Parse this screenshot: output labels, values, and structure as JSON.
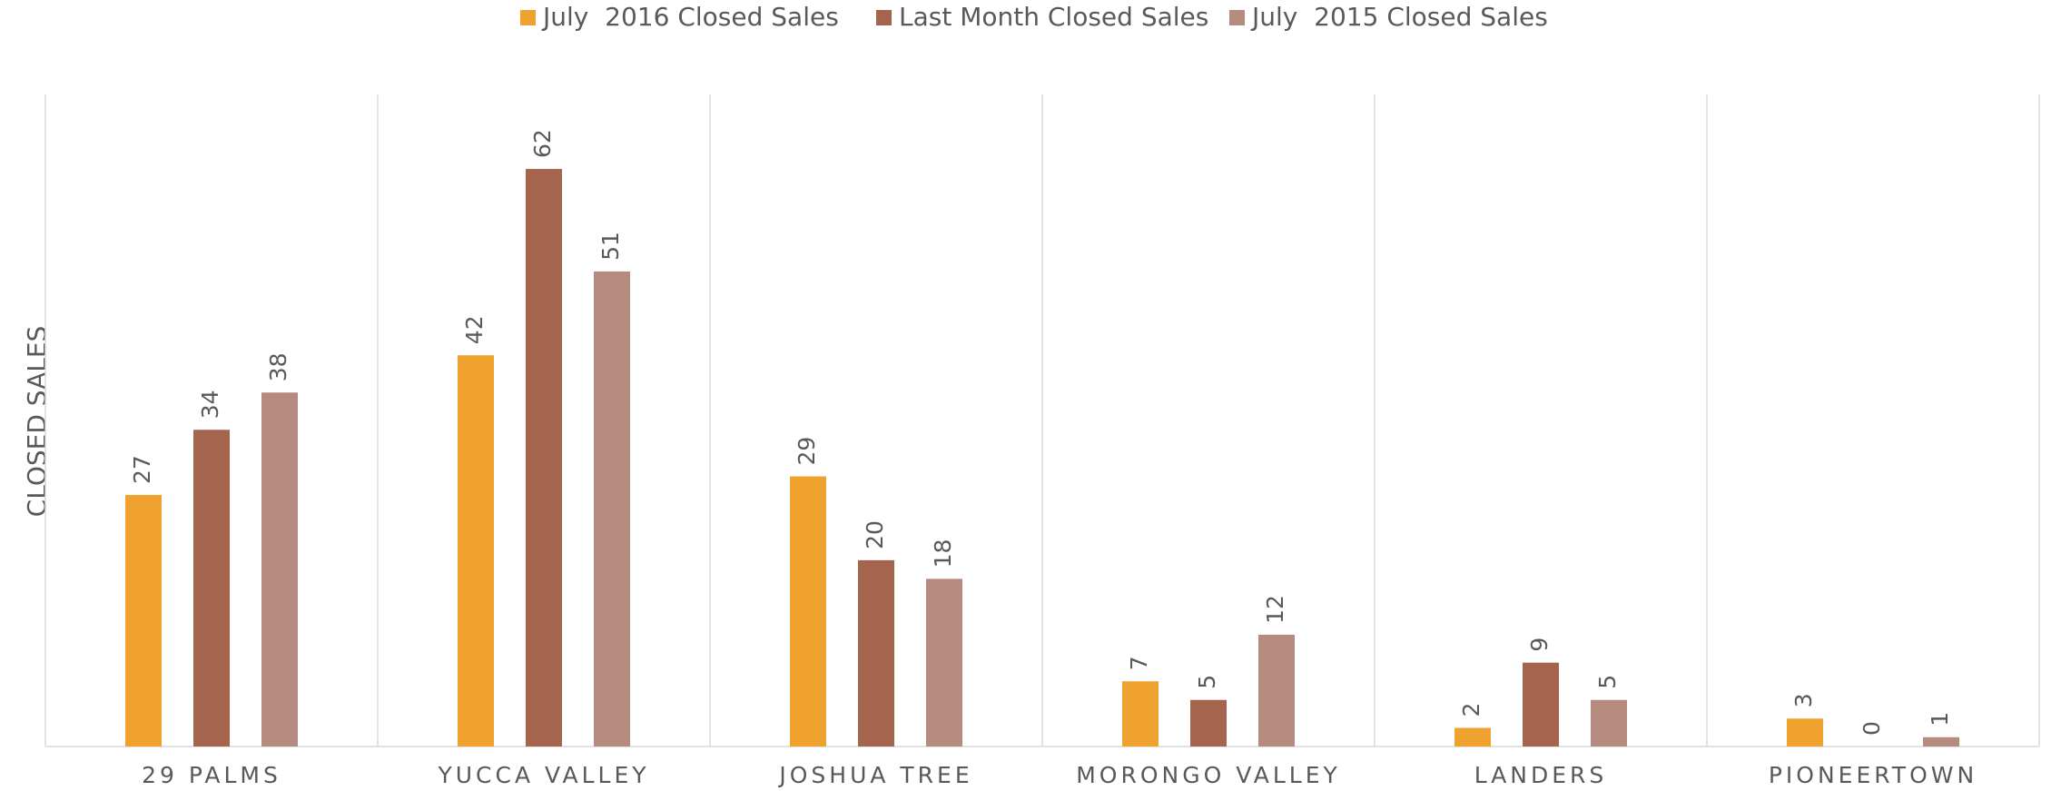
{
  "chart_data": {
    "type": "bar",
    "y_label": "CLOSED SALES",
    "categories": [
      "29 PALMS",
      "YUCCA VALLEY",
      "JOSHUA TREE",
      "MORONGO VALLEY",
      "LANDERS",
      "PIONEERTOWN"
    ],
    "series": [
      {
        "name": "July  2016 Closed Sales",
        "color": "#F0A22E",
        "values": [
          27,
          42,
          29,
          7,
          2,
          3
        ]
      },
      {
        "name": "Last Month Closed Sales",
        "color": "#A5644E",
        "values": [
          34,
          62,
          20,
          5,
          9,
          0
        ]
      },
      {
        "name": "July  2015 Closed Sales",
        "color": "#B58B80",
        "values": [
          38,
          51,
          18,
          12,
          5,
          1
        ]
      }
    ],
    "ylim": [
      0,
      70
    ],
    "legend": "top",
    "data_labels": true
  }
}
